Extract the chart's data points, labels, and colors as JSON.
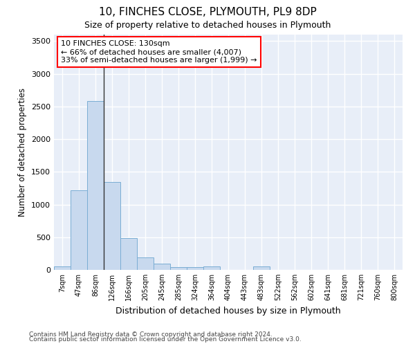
{
  "title1": "10, FINCHES CLOSE, PLYMOUTH, PL9 8DP",
  "title2": "Size of property relative to detached houses in Plymouth",
  "xlabel": "Distribution of detached houses by size in Plymouth",
  "ylabel": "Number of detached properties",
  "categories": [
    "7sqm",
    "47sqm",
    "86sqm",
    "126sqm",
    "166sqm",
    "205sqm",
    "245sqm",
    "285sqm",
    "324sqm",
    "364sqm",
    "404sqm",
    "443sqm",
    "483sqm",
    "522sqm",
    "562sqm",
    "602sqm",
    "641sqm",
    "681sqm",
    "721sqm",
    "760sqm",
    "800sqm"
  ],
  "values": [
    50,
    1220,
    2580,
    1340,
    490,
    190,
    100,
    45,
    40,
    55,
    0,
    0,
    50,
    0,
    0,
    0,
    0,
    0,
    0,
    0,
    0
  ],
  "bar_color": "#c8d9ee",
  "bar_edge_color": "#7aadd4",
  "annotation_line1": "10 FINCHES CLOSE: 130sqm",
  "annotation_line2": "← 66% of detached houses are smaller (4,007)",
  "annotation_line3": "33% of semi-detached houses are larger (1,999) →",
  "ylim": [
    0,
    3600
  ],
  "yticks": [
    0,
    500,
    1000,
    1500,
    2000,
    2500,
    3000,
    3500
  ],
  "background_color": "#e8eef8",
  "footer1": "Contains HM Land Registry data © Crown copyright and database right 2024.",
  "footer2": "Contains public sector information licensed under the Open Government Licence v3.0."
}
